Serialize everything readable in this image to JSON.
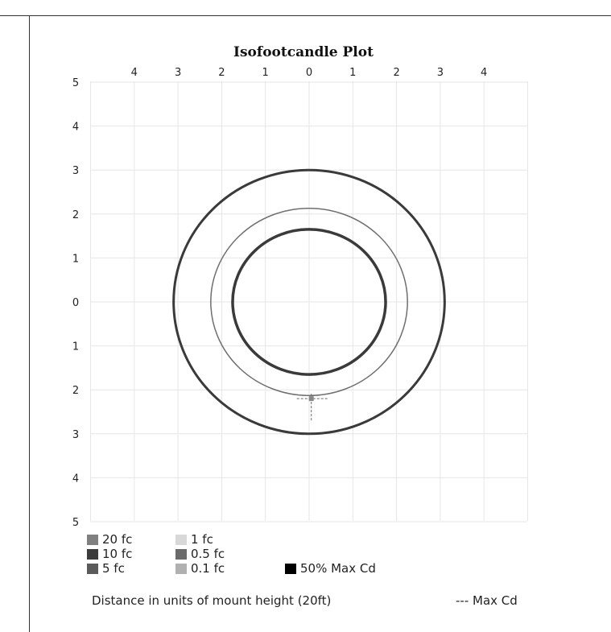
{
  "chart_data": {
    "type": "contour",
    "title": "Isofootcandle Plot",
    "xlabel": "Distance in units of mount height (20ft)",
    "x_ticks": [
      "4",
      "3",
      "2",
      "1",
      "0",
      "1",
      "2",
      "3",
      "4"
    ],
    "y_ticks": [
      "5",
      "4",
      "3",
      "2",
      "1",
      "0",
      "1",
      "2",
      "3",
      "4",
      "5"
    ],
    "xlim": [
      -5,
      5
    ],
    "ylim": [
      -5,
      5
    ],
    "grid": true,
    "legend_position": "bottom-left",
    "contours": [
      {
        "level": "0.1 fc",
        "center": [
          0,
          0
        ],
        "radius_x": 3.1,
        "radius_y": 3.0,
        "color": "#3a3a3a",
        "width": 3
      },
      {
        "level": "1 fc",
        "center": [
          0,
          0
        ],
        "radius_x": 2.25,
        "radius_y": 2.13,
        "color": "#6f6f6f",
        "width": 1.5
      },
      {
        "level": "5 fc",
        "center": [
          0,
          0
        ],
        "radius_x": 1.75,
        "radius_y": 1.65,
        "color": "#3a3a3a",
        "width": 3.5
      }
    ],
    "max_cd_marker": {
      "x": 0.05,
      "y": -2.2
    },
    "legend": [
      {
        "label": "20 fc",
        "color": "#808080"
      },
      {
        "label": "10 fc",
        "color": "#3c3c3c"
      },
      {
        "label": "5 fc",
        "color": "#5a5a5a"
      },
      {
        "label": "1 fc",
        "color": "#d8d8d8"
      },
      {
        "label": "0.5 fc",
        "color": "#6a6a6a"
      },
      {
        "label": "0.1 fc",
        "color": "#b0b0b0"
      },
      {
        "label": "50% Max Cd",
        "color": "#000000"
      }
    ],
    "max_cd_note": "--- Max Cd"
  }
}
